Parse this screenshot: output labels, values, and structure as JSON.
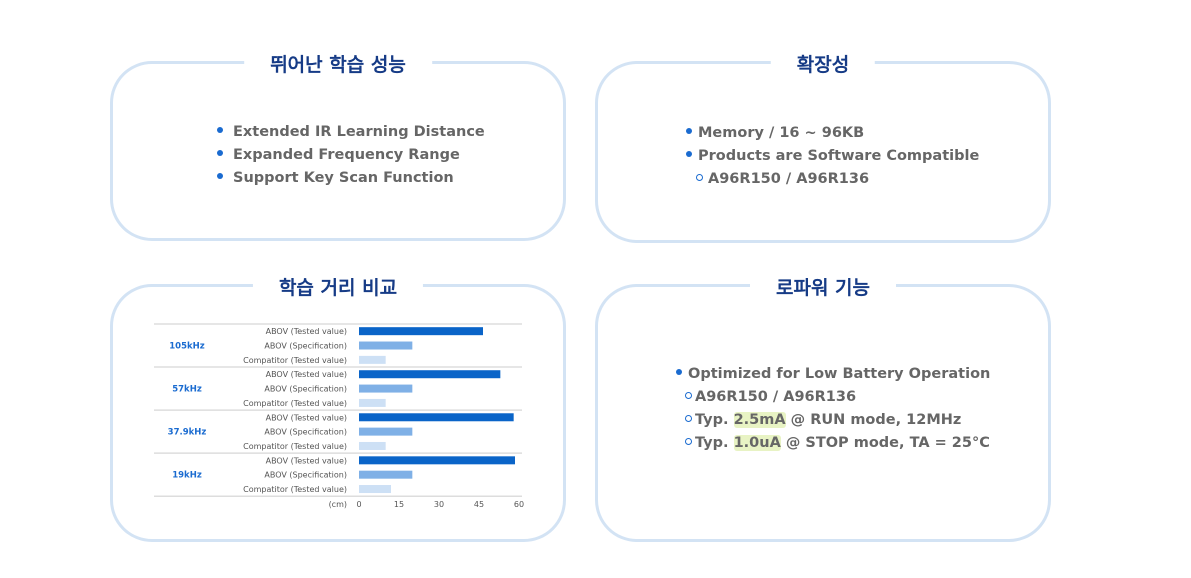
{
  "cards": {
    "performance": {
      "title": "뛰어난 학습 성능",
      "items": [
        "Extended IR Learning Distance",
        "Expanded Frequency Range",
        "Support Key Scan Function"
      ]
    },
    "scalability": {
      "title": "확장성",
      "items": [
        "Memory / 16 ~ 96KB",
        "Products are Software Compatible"
      ],
      "sub": "A96R150 / A96R136"
    },
    "comparison": {
      "title": "학습 거리 비교"
    },
    "lowpower": {
      "title": "로파워 기능",
      "item": "Optimized for Low Battery Operation",
      "sub1": "A96R150 / A96R136",
      "sub2_pre": "Typ. ",
      "sub2_hl": "2.5mA",
      "sub2_post": " @ RUN mode, 12MHz",
      "sub3_pre": "Typ. ",
      "sub3_hl": "1.0uA",
      "sub3_post": " @ STOP mode, TA = 25°C"
    }
  },
  "chart_data": {
    "type": "bar",
    "orientation": "horizontal",
    "categories": [
      "105kHz",
      "57kHz",
      "37.9kHz",
      "19kHz"
    ],
    "series": [
      {
        "name": "ABOV (Tested value)",
        "values": [
          46.5,
          53,
          58,
          58.5
        ],
        "color": "#0a64c8"
      },
      {
        "name": "ABOV (Specification)",
        "values": [
          20,
          20,
          20,
          20
        ],
        "color": "#7fb0e6"
      },
      {
        "name": "Compatitor (Tested value)",
        "values": [
          10,
          10,
          10,
          12
        ],
        "color": "#cde0f5"
      }
    ],
    "xlabel": "(cm)",
    "xlim": [
      0,
      60
    ],
    "xticks": [
      "0",
      "15",
      "30",
      "45",
      "60"
    ],
    "category_color": "#1a6bd0"
  }
}
